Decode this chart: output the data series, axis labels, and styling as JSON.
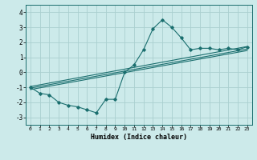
{
  "xlabel": "Humidex (Indice chaleur)",
  "ylabel": "",
  "background_color": "#cceaea",
  "line_color": "#1a6e6e",
  "grid_color": "#aacfcf",
  "xlim": [
    -0.5,
    23.5
  ],
  "ylim": [
    -3.5,
    4.5
  ],
  "yticks": [
    -3,
    -2,
    -1,
    0,
    1,
    2,
    3,
    4
  ],
  "xticks": [
    0,
    1,
    2,
    3,
    4,
    5,
    6,
    7,
    8,
    9,
    10,
    11,
    12,
    13,
    14,
    15,
    16,
    17,
    18,
    19,
    20,
    21,
    22,
    23
  ],
  "curve1_x": [
    0,
    1,
    2,
    3,
    4,
    5,
    6,
    7,
    8,
    9,
    10,
    11,
    12,
    13,
    14,
    15,
    16,
    17,
    18,
    19,
    20,
    21,
    22,
    23
  ],
  "curve1_y": [
    -1.0,
    -1.4,
    -1.5,
    -2.0,
    -2.2,
    -2.3,
    -2.5,
    -2.7,
    -1.8,
    -1.8,
    0.0,
    0.5,
    1.5,
    2.9,
    3.5,
    3.0,
    2.3,
    1.5,
    1.6,
    1.6,
    1.5,
    1.6,
    1.5,
    1.7
  ],
  "line1_x": [
    0,
    23
  ],
  "line1_y": [
    -1.05,
    1.55
  ],
  "line2_x": [
    0,
    23
  ],
  "line2_y": [
    -1.15,
    1.45
  ],
  "line3_x": [
    0,
    23
  ],
  "line3_y": [
    -0.95,
    1.72
  ]
}
